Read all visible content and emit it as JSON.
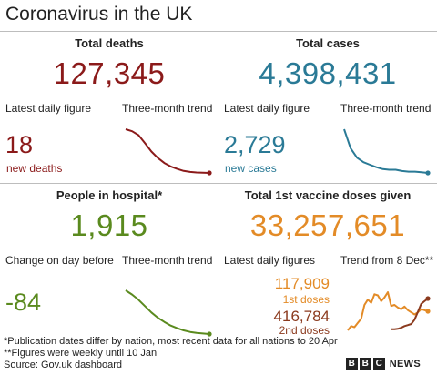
{
  "title": "Coronavirus in the UK",
  "colors": {
    "deaths": "#8b1a1a",
    "cases": "#2a7a96",
    "hospital": "#5a8a1e",
    "vaccine": "#e38b27",
    "vaccine_second": "#8b3a1e"
  },
  "deaths": {
    "title": "Total deaths",
    "total": "127,345",
    "latest_label": "Latest daily figure",
    "trend_label": "Three-month trend",
    "daily": "18",
    "daily_label": "new deaths"
  },
  "cases": {
    "title": "Total cases",
    "total": "4,398,431",
    "latest_label": "Latest daily figure",
    "trend_label": "Three-month trend",
    "daily": "2,729",
    "daily_label": "new cases"
  },
  "hospital": {
    "title": "People in hospital*",
    "total": "1,915",
    "latest_label": "Change on day before",
    "trend_label": "Three-month trend",
    "daily": "-84"
  },
  "vaccine": {
    "title": "Total 1st vaccine doses given",
    "total": "33,257,651",
    "latest_label": "Latest daily figures",
    "trend_label": "Trend from 8 Dec**",
    "first_value": "117,909",
    "first_label": "1st doses",
    "second_value": "416,784",
    "second_label": "2nd doses"
  },
  "footnotes": {
    "note1": "*Publication dates differ by nation, most recent data for all nations to 20 Apr",
    "note2": "**Figures were weekly until 10 Jan",
    "source": "Source: Gov.uk dashboard"
  },
  "logo": {
    "letters": [
      "B",
      "B",
      "C"
    ],
    "word": "NEWS"
  },
  "chart_data": [
    {
      "type": "line",
      "series": [
        {
          "values": [
            100,
            96,
            88,
            72,
            55,
            42,
            32,
            25,
            20,
            16,
            14,
            13,
            12.5,
            12
          ]
        }
      ]
    },
    {
      "type": "line",
      "series": [
        {
          "values": [
            100,
            70,
            55,
            48,
            44,
            40,
            37,
            36,
            36,
            34,
            33,
            33,
            32,
            31
          ]
        }
      ]
    },
    {
      "type": "line",
      "series": [
        {
          "values": [
            100,
            92,
            82,
            70,
            58,
            48,
            40,
            33,
            28,
            24,
            21,
            19,
            18,
            17
          ]
        }
      ]
    },
    {
      "type": "line",
      "series": [
        {
          "values": [
            0,
            8,
            6,
            14,
            22,
            48,
            58,
            52,
            68,
            66,
            55,
            62,
            72,
            46,
            48,
            43,
            40,
            45,
            38,
            34,
            30,
            34,
            40,
            38,
            36
          ]
        },
        {
          "values": [
            null,
            null,
            null,
            null,
            null,
            null,
            null,
            null,
            null,
            null,
            null,
            null,
            null,
            2,
            2,
            3,
            5,
            8,
            10,
            12,
            20,
            35,
            50,
            55,
            60
          ]
        }
      ]
    }
  ]
}
